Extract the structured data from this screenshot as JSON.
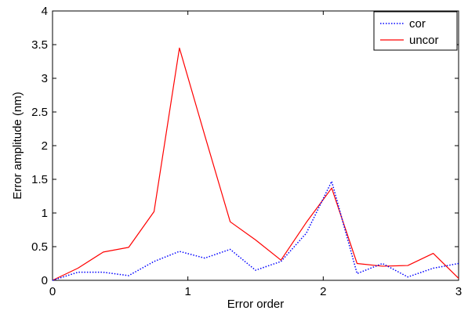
{
  "chart_data": {
    "type": "line",
    "xlabel": "Error order",
    "ylabel": "Error amplitude (nm)",
    "xlim": [
      0,
      3
    ],
    "ylim": [
      0,
      4
    ],
    "xticks": [
      0,
      1,
      2,
      3
    ],
    "xtick_labels": [
      "0",
      "1",
      "2",
      "3"
    ],
    "yticks": [
      0,
      0.5,
      1,
      1.5,
      2,
      2.5,
      3,
      3.5,
      4
    ],
    "ytick_labels": [
      "0",
      "0.5",
      "1",
      "1.5",
      "2",
      "2.5",
      "3",
      "3.5",
      "4"
    ],
    "grid": false,
    "legend_position": "top-right",
    "x": [
      0,
      0.1875,
      0.375,
      0.5625,
      0.75,
      0.9375,
      1.125,
      1.3125,
      1.5,
      1.6875,
      1.875,
      2.0625,
      2.25,
      2.4375,
      2.625,
      2.8125,
      3.0
    ],
    "series": [
      {
        "name": "cor",
        "color": "#0000ff",
        "style": "dotted",
        "values": [
          0.0,
          0.12,
          0.12,
          0.07,
          0.28,
          0.43,
          0.33,
          0.46,
          0.15,
          0.28,
          0.7,
          1.47,
          0.1,
          0.25,
          0.05,
          0.18,
          0.25
        ]
      },
      {
        "name": "uncor",
        "color": "#ff0000",
        "style": "solid",
        "values": [
          0.0,
          0.18,
          0.42,
          0.49,
          1.02,
          3.45,
          2.15,
          0.87,
          0.6,
          0.3,
          0.86,
          1.37,
          0.25,
          0.21,
          0.22,
          0.4,
          0.03
        ]
      }
    ]
  }
}
